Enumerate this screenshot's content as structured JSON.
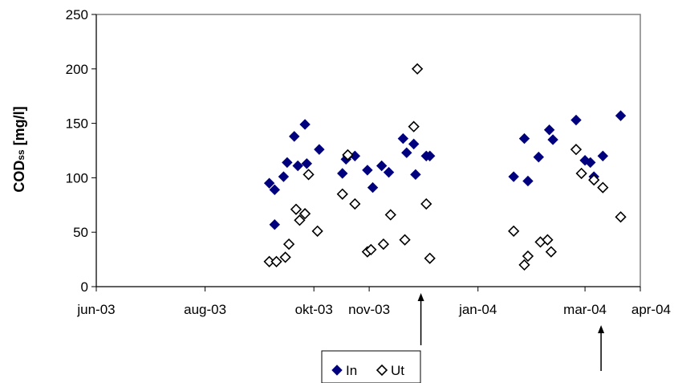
{
  "chart_data": {
    "type": "scatter",
    "title": "",
    "xlabel": "",
    "ylabel_main": "COD",
    "ylabel_sub": "ss",
    "ylabel_unit": " [mg/l]",
    "xlim": [
      "2003-06-01",
      "2004-04-01"
    ],
    "ylim": [
      0,
      250
    ],
    "y_ticks": [
      0,
      50,
      100,
      150,
      200,
      250
    ],
    "x_ticks": [
      {
        "date": "2003-06-01",
        "label": "jun-03"
      },
      {
        "date": "2003-08-01",
        "label": "aug-03"
      },
      {
        "date": "2003-10-01",
        "label": "okt-03"
      },
      {
        "date": "2003-11-01",
        "label": "nov-03"
      },
      {
        "date": "2004-01-01",
        "label": "jan-04"
      },
      {
        "date": "2004-03-01",
        "label": "mar-04"
      },
      {
        "date": "2004-04-01",
        "label": "apr-04"
      }
    ],
    "grid": false,
    "legend": "bottom",
    "annotations": [
      {
        "type": "arrow",
        "date": "2003-11-30"
      },
      {
        "type": "arrow",
        "date": "2004-03-10"
      }
    ],
    "series": [
      {
        "name": "In",
        "marker": "filled-diamond",
        "color": "#00007f",
        "points": [
          {
            "x": "2003-09-06",
            "y": 95
          },
          {
            "x": "2003-09-09",
            "y": 89
          },
          {
            "x": "2003-09-09",
            "y": 57
          },
          {
            "x": "2003-09-14",
            "y": 101
          },
          {
            "x": "2003-09-16",
            "y": 114
          },
          {
            "x": "2003-09-20",
            "y": 138
          },
          {
            "x": "2003-09-22",
            "y": 111
          },
          {
            "x": "2003-09-26",
            "y": 149
          },
          {
            "x": "2003-09-27",
            "y": 113
          },
          {
            "x": "2003-10-04",
            "y": 126
          },
          {
            "x": "2003-10-17",
            "y": 104
          },
          {
            "x": "2003-10-19",
            "y": 117
          },
          {
            "x": "2003-10-20",
            "y": 120
          },
          {
            "x": "2003-10-24",
            "y": 120
          },
          {
            "x": "2003-10-31",
            "y": 107
          },
          {
            "x": "2003-11-03",
            "y": 91
          },
          {
            "x": "2003-11-08",
            "y": 111
          },
          {
            "x": "2003-11-12",
            "y": 105
          },
          {
            "x": "2003-11-20",
            "y": 136
          },
          {
            "x": "2003-11-22",
            "y": 123
          },
          {
            "x": "2003-11-26",
            "y": 131
          },
          {
            "x": "2003-11-27",
            "y": 103
          },
          {
            "x": "2003-12-03",
            "y": 120
          },
          {
            "x": "2003-12-05",
            "y": 120
          },
          {
            "x": "2004-01-21",
            "y": 101
          },
          {
            "x": "2004-01-27",
            "y": 136
          },
          {
            "x": "2004-01-29",
            "y": 97
          },
          {
            "x": "2004-02-04",
            "y": 119
          },
          {
            "x": "2004-02-10",
            "y": 144
          },
          {
            "x": "2004-02-12",
            "y": 135
          },
          {
            "x": "2004-02-25",
            "y": 153
          },
          {
            "x": "2004-03-01",
            "y": 116
          },
          {
            "x": "2004-03-04",
            "y": 114
          },
          {
            "x": "2004-03-06",
            "y": 101
          },
          {
            "x": "2004-03-11",
            "y": 120
          },
          {
            "x": "2004-03-21",
            "y": 157
          }
        ]
      },
      {
        "name": "Ut",
        "marker": "open-diamond",
        "color": "#000000",
        "points": [
          {
            "x": "2003-09-06",
            "y": 23
          },
          {
            "x": "2003-09-10",
            "y": 23
          },
          {
            "x": "2003-09-15",
            "y": 27
          },
          {
            "x": "2003-09-17",
            "y": 39
          },
          {
            "x": "2003-09-21",
            "y": 71
          },
          {
            "x": "2003-09-23",
            "y": 61
          },
          {
            "x": "2003-09-26",
            "y": 67
          },
          {
            "x": "2003-09-28",
            "y": 103
          },
          {
            "x": "2003-10-03",
            "y": 51
          },
          {
            "x": "2003-10-17",
            "y": 85
          },
          {
            "x": "2003-10-20",
            "y": 121
          },
          {
            "x": "2003-10-24",
            "y": 76
          },
          {
            "x": "2003-10-31",
            "y": 32
          },
          {
            "x": "2003-11-02",
            "y": 34
          },
          {
            "x": "2003-11-09",
            "y": 39
          },
          {
            "x": "2003-11-13",
            "y": 66
          },
          {
            "x": "2003-11-21",
            "y": 43
          },
          {
            "x": "2003-11-26",
            "y": 147
          },
          {
            "x": "2003-11-28",
            "y": 200
          },
          {
            "x": "2003-12-03",
            "y": 76
          },
          {
            "x": "2003-12-05",
            "y": 26
          },
          {
            "x": "2004-01-21",
            "y": 51
          },
          {
            "x": "2004-01-27",
            "y": 20
          },
          {
            "x": "2004-01-29",
            "y": 28
          },
          {
            "x": "2004-02-05",
            "y": 41
          },
          {
            "x": "2004-02-09",
            "y": 43
          },
          {
            "x": "2004-02-11",
            "y": 32
          },
          {
            "x": "2004-02-25",
            "y": 126
          },
          {
            "x": "2004-02-28",
            "y": 104
          },
          {
            "x": "2004-03-06",
            "y": 98
          },
          {
            "x": "2004-03-11",
            "y": 91
          },
          {
            "x": "2004-03-21",
            "y": 64
          }
        ]
      }
    ]
  }
}
